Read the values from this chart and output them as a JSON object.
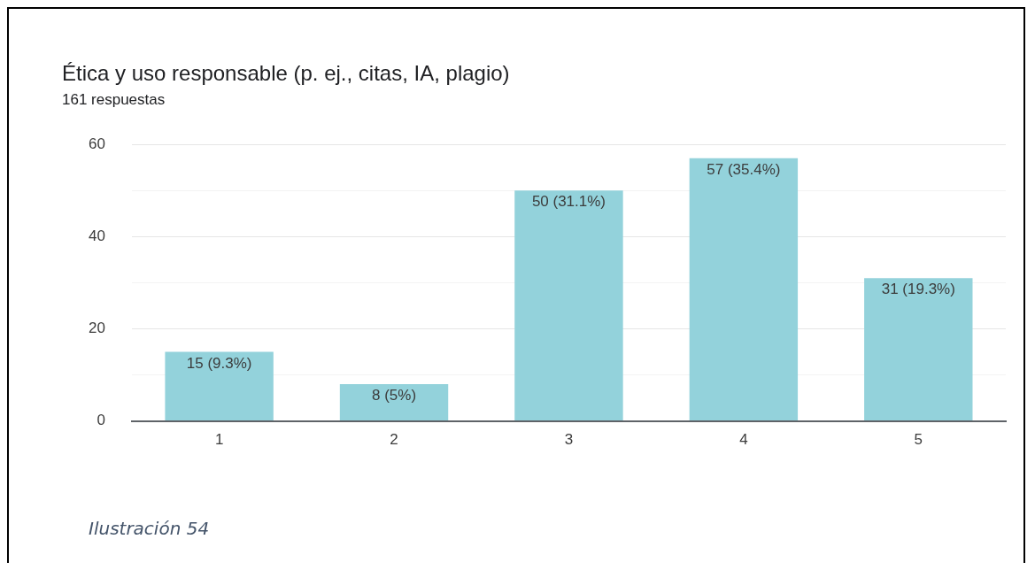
{
  "chart_data": {
    "type": "bar",
    "title": "Ética y uso responsable (p. ej., citas, IA, plagio)",
    "subtitle": "161 respuestas",
    "categories": [
      "1",
      "2",
      "3",
      "4",
      "5"
    ],
    "values": [
      15,
      8,
      50,
      57,
      31
    ],
    "value_labels": [
      "15 (9.3%)",
      "8 (5%)",
      "50 (31.1%)",
      "57 (35.4%)",
      "31 (19.3%)"
    ],
    "color": "#93d2db",
    "ylim": [
      0,
      60
    ],
    "yticks": [
      0,
      {
        "value": 10,
        "label": null
      },
      20,
      {
        "value": 30,
        "label": null
      },
      40,
      {
        "value": 50,
        "label": null
      },
      60
    ],
    "grid": "y",
    "legend": false,
    "annotations": [
      "Ilustración 54"
    ]
  }
}
